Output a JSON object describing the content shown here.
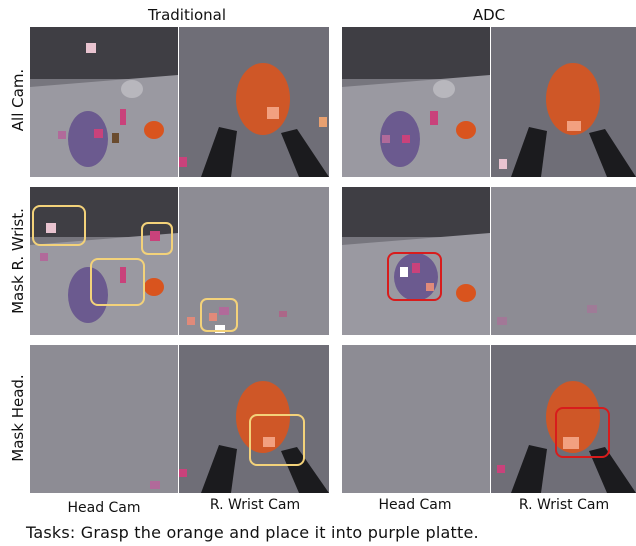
{
  "groups": {
    "traditional": "Traditional",
    "adc": "ADC"
  },
  "rows": {
    "all_cam": "All Cam.",
    "mask_wrist": "Mask R. Wrist.",
    "mask_head": "Mask Head."
  },
  "columns": {
    "head_cam": "Head Cam",
    "wrist_cam": "R. Wrist Cam"
  },
  "caption": "Tasks: Grasp the orange and place it into purple platte.",
  "colors": {
    "traditional_box": "#f3d27a",
    "adc_box": "#d81c1c",
    "orange": "#d9541e",
    "purple_plate": "#6b5a8f"
  }
}
